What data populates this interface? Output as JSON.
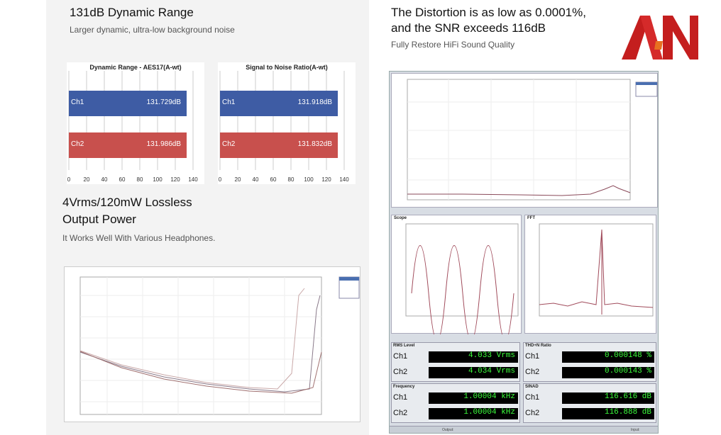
{
  "section1": {
    "title": "131dB Dynamic Range",
    "subtitle": "Larger dynamic, ultra-low background noise"
  },
  "section2": {
    "title_line1": "The Distortion is as low as 0.0001%,",
    "title_line2": "and the SNR exceeds 116dB",
    "subtitle": "Fully Restore HiFi Sound Quality"
  },
  "section3": {
    "title_line1": "4Vrms/120mW Lossless",
    "title_line2": "Output Power",
    "subtitle": "It Works Well With Various Headphones."
  },
  "chart_data": [
    {
      "type": "bar",
      "title": "Dynamic Range - AES17(A-wt)",
      "categories": [
        "Ch1",
        "Ch2"
      ],
      "values": [
        131.729,
        131.986
      ],
      "labels": [
        "131.729dB",
        "131.986dB"
      ],
      "xticks": [
        "0",
        "20",
        "40",
        "60",
        "80",
        "100",
        "120",
        "140"
      ],
      "xlim": [
        0,
        140
      ],
      "colors": [
        "#3e5ca4",
        "#c8504d"
      ]
    },
    {
      "type": "bar",
      "title": "Signal to Noise Ratio(A-wt)",
      "categories": [
        "Ch1",
        "Ch2"
      ],
      "values": [
        131.918,
        131.832
      ],
      "labels": [
        "131.918dB",
        "131.832dB"
      ],
      "xticks": [
        "0",
        "20",
        "40",
        "60",
        "80",
        "100",
        "120",
        "140"
      ],
      "xlim": [
        0,
        140
      ],
      "colors": [
        "#3e5ca4",
        "#c8504d"
      ]
    }
  ],
  "analyzer": {
    "scope_label": "Scope",
    "fft_label": "FFT",
    "rms_label": "RMS Level",
    "rms_unit": "Vrms",
    "thd_label": "THD+N Ratio",
    "thd_unit": "%",
    "freq_label": "Frequency",
    "freq_unit": "kHz",
    "sinad_label": "SINAD",
    "sinad_unit": "dB",
    "rms": {
      "ch1": "4.033",
      "ch2": "4.034"
    },
    "thd": {
      "ch1": "0.000148",
      "ch2": "0.000143"
    },
    "freq": {
      "ch1": "1.00004",
      "ch2": "1.00004"
    },
    "sinad": {
      "ch1": "116.616",
      "ch2": "116.888"
    },
    "ch1": "Ch1",
    "ch2": "Ch2",
    "output_label": "Output:",
    "input_label": "Input:"
  },
  "accent": {
    "blue": "#3e5ca4",
    "red": "#c8504d",
    "meter_green": "#3cff3c"
  }
}
